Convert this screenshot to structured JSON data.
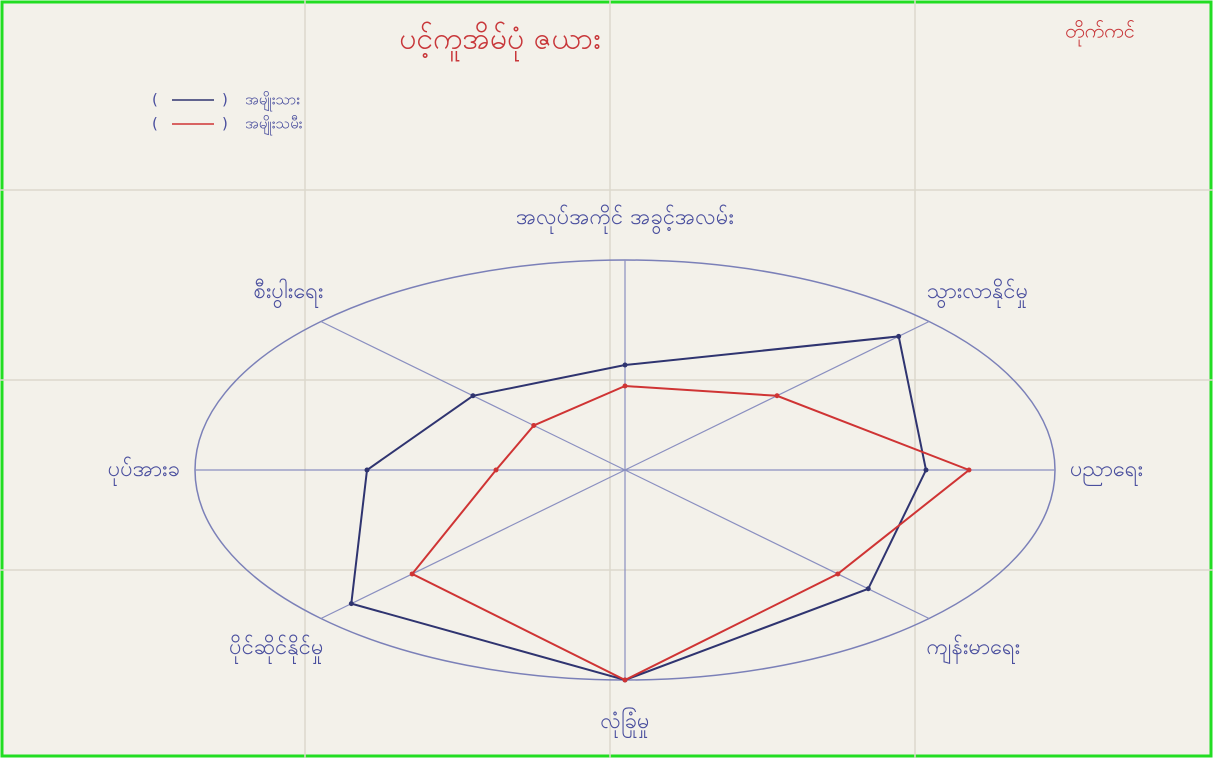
{
  "chart_data": {
    "type": "radar",
    "title": "ပင့်ကူအိမ်ပုံ ဇယား",
    "annotations": [
      "တိုက်ကင်"
    ],
    "categories": [
      "အလုပ်အကိုင် အခွင့်အလမ်း",
      "သွားလာနိုင်မှု",
      "ပညာရေး",
      "ကျန်းမာရေး",
      "လုံခြုံမှု",
      "ပိုင်ဆိုင်နိုင်မှု",
      "ပုပ်အားခ",
      "စီးပွါးရေး"
    ],
    "series": [
      {
        "name": "အမျိုးသား",
        "color": "#2f3470",
        "values": [
          5,
          9,
          7,
          8,
          10,
          9,
          6,
          5
        ]
      },
      {
        "name": "အမျိုးသမီး",
        "color": "#cf3434",
        "values": [
          4,
          5,
          8,
          7,
          10,
          7,
          3,
          3
        ]
      }
    ],
    "rlim": [
      0,
      10
    ]
  }
}
